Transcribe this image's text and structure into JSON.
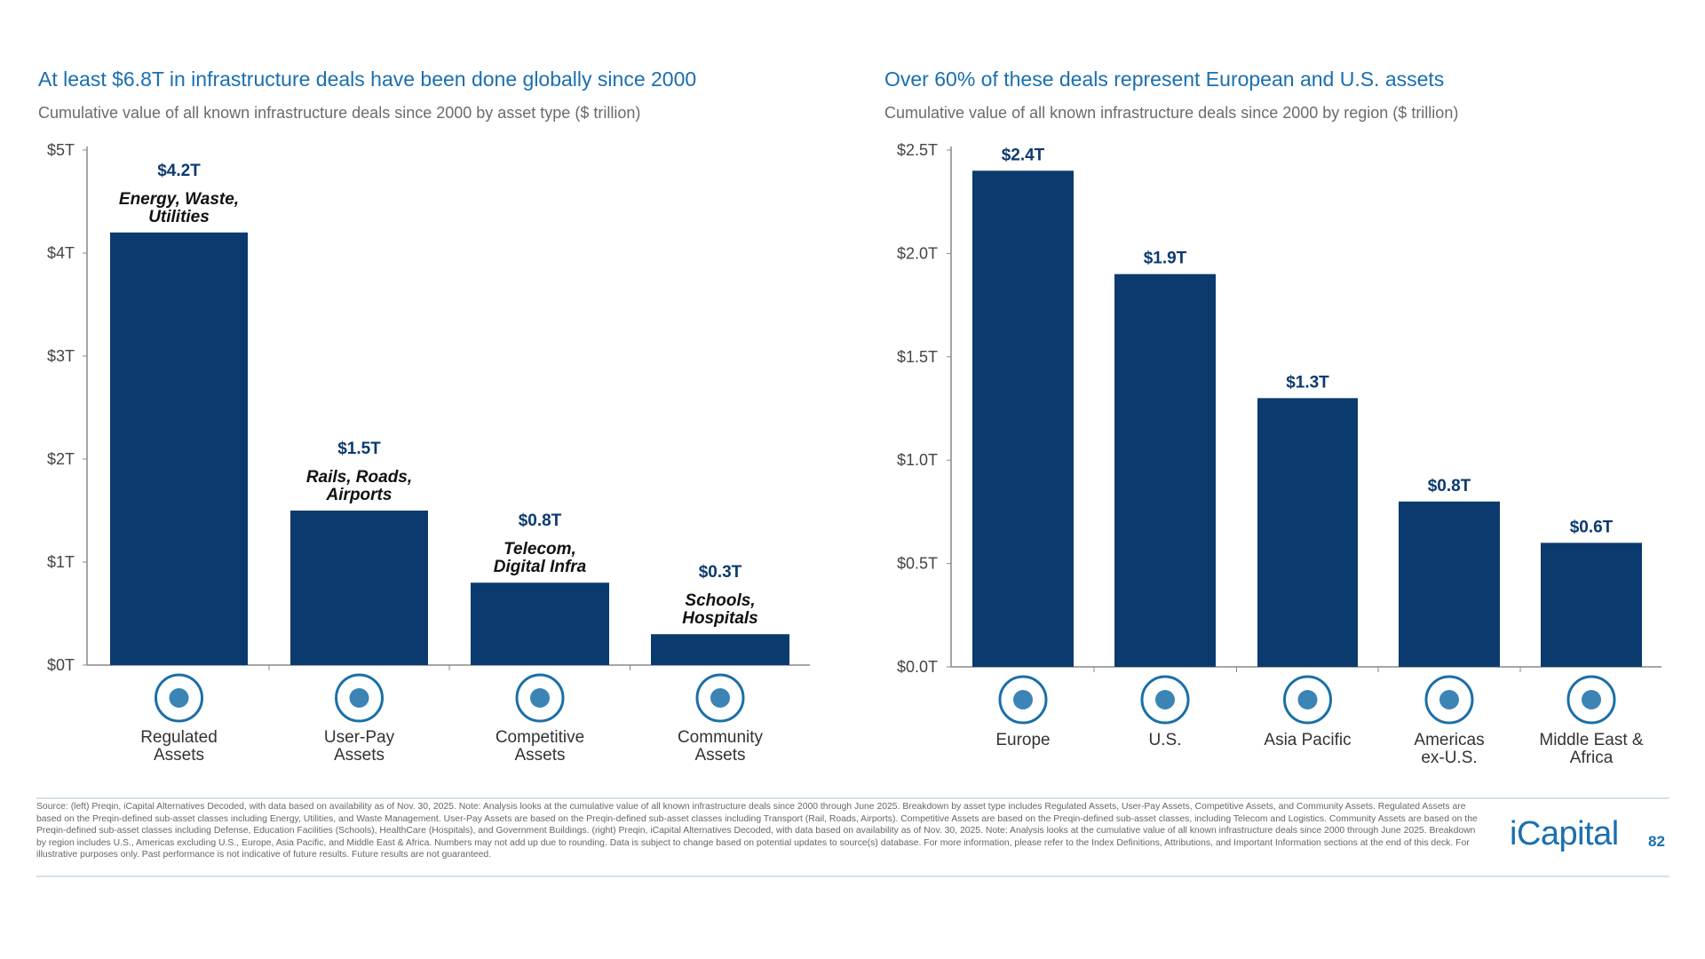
{
  "left": {
    "title": "At least $6.8T in infrastructure deals have been done globally since 2000",
    "subtitle": "Cumulative value of all known infrastructure deals since 2000 by asset type ($ trillion)"
  },
  "right": {
    "title": "Over 60% of these deals represent European and U.S. assets",
    "subtitle": "Cumulative value of all known infrastructure deals since 2000 by region ($ trillion)"
  },
  "colors": {
    "bar": "#0b3a6e",
    "accent": "#1a6fb0",
    "icon": "#1a6fa8"
  },
  "chart_data": [
    {
      "type": "bar",
      "categories": [
        "Regulated Assets",
        "User-Pay Assets",
        "Competitive Assets",
        "Community Assets"
      ],
      "category_lines": [
        [
          "Regulated",
          "Assets"
        ],
        [
          "User-Pay",
          "Assets"
        ],
        [
          "Competitive",
          "Assets"
        ],
        [
          "Community",
          "Assets"
        ]
      ],
      "values": [
        4.2,
        1.5,
        0.8,
        0.3
      ],
      "data_labels": [
        "$4.2T",
        "$1.5T",
        "$0.8T",
        "$0.3T"
      ],
      "annotations": [
        [
          "Energy, Waste,",
          "Utilities"
        ],
        [
          "Rails, Roads,",
          "Airports"
        ],
        [
          "Telecom,",
          "Digital Infra"
        ],
        [
          "Schools,",
          "Hospitals"
        ]
      ],
      "icons": [
        "power-plant-icon",
        "airplane-icon",
        "cell-tower-icon",
        "school-building-icon"
      ],
      "yticks": [
        0,
        1,
        2,
        3,
        4,
        5
      ],
      "ytick_labels": [
        "$0T",
        "$1T",
        "$2T",
        "$3T",
        "$4T",
        "$5T"
      ],
      "ylim": [
        0,
        5
      ],
      "grid": false
    },
    {
      "type": "bar",
      "categories": [
        "Europe",
        "U.S.",
        "Asia Pacific",
        "Americas ex-U.S.",
        "Middle East & Africa"
      ],
      "category_lines": [
        [
          "Europe"
        ],
        [
          "U.S."
        ],
        [
          "Asia Pacific"
        ],
        [
          "Americas",
          "ex-U.S."
        ],
        [
          "Middle East &",
          "Africa"
        ]
      ],
      "values": [
        2.4,
        1.9,
        1.3,
        0.8,
        0.6
      ],
      "data_labels": [
        "$2.4T",
        "$1.9T",
        "$1.3T",
        "$0.8T",
        "$0.6T"
      ],
      "icons": [
        "europe-map-icon",
        "us-map-icon",
        "asia-pacific-map-icon",
        "americas-map-icon",
        "africa-map-icon"
      ],
      "yticks": [
        0,
        0.5,
        1.0,
        1.5,
        2.0,
        2.5
      ],
      "ytick_labels": [
        "$0.0T",
        "$0.5T",
        "$1.0T",
        "$1.5T",
        "$2.0T",
        "$2.5T"
      ],
      "ylim": [
        0,
        2.5
      ],
      "grid": false
    }
  ],
  "footer": {
    "text": "Source: (left) Preqin, iCapital Alternatives Decoded, with data based on availability as of Nov. 30, 2025. Note: Analysis looks at the cumulative value of all known infrastructure deals since 2000 through June 2025. Breakdown by asset type includes Regulated Assets, User-Pay Assets, Competitive Assets, and Community Assets. Regulated Assets are based on the Preqin-defined sub-asset classes including Energy, Utilities, and Waste Management. User-Pay Assets are based on the Preqin-defined sub-asset classes including Transport (Rail, Roads, Airports). Competitive Assets are based on the Preqin-defined sub-asset classes, including Telecom and Logistics. Community Assets are based on the Preqin-defined sub-asset classes including Defense, Education Facilities (Schools), HealthCare (Hospitals), and Government Buildings. (right) Preqin, iCapital Alternatives Decoded, with data based on availability as of Nov. 30, 2025. Note: Analysis looks at the cumulative value of all known infrastructure deals since 2000 through June 2025. Breakdown by region includes U.S., Americas excluding U.S., Europe, Asia Pacific, and Middle East & Africa. Numbers may not add up due to rounding. Data is subject to change based on potential updates to source(s) database. For more information, please refer to the Index Definitions, Attributions, and Important Information sections at the end of this deck. For illustrative purposes only. Past performance is not indicative of future results. Future results are not guaranteed.",
    "logo": "iCapital",
    "page_number": "82"
  }
}
